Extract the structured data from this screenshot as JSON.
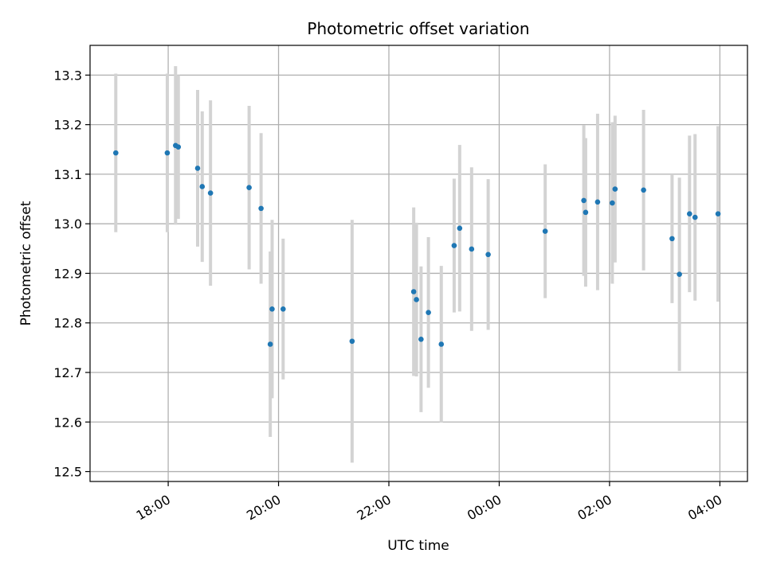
{
  "chart_data": {
    "type": "scatter",
    "title": "Photometric offset variation",
    "xlabel": "UTC time",
    "ylabel": "Photometric offset",
    "x_tick_labels": [
      "18:00",
      "20:00",
      "22:00",
      "00:00",
      "02:00",
      "04:00"
    ],
    "x_ticks": [
      "18:00",
      "20:00",
      "22:00",
      "00:00",
      "02:00",
      "04:00"
    ],
    "x_range": [
      "16:35",
      "04:30"
    ],
    "y_range": [
      12.48,
      13.36
    ],
    "y_ticks": [
      12.5,
      12.6,
      12.7,
      12.8,
      12.9,
      13.0,
      13.1,
      13.2,
      13.3
    ],
    "y_tick_labels": [
      "12.5",
      "12.6",
      "12.7",
      "12.8",
      "12.9",
      "13.0",
      "13.1",
      "13.2",
      "13.3"
    ],
    "grid": true,
    "x_tick_rotation": "30deg",
    "point_color": "#1f77b4",
    "errorbar_color": "#d3d3d3",
    "series": [
      {
        "points": [
          {
            "x": "17:03",
            "y": 13.143,
            "err": 0.16
          },
          {
            "x": "17:59",
            "y": 13.143,
            "err": 0.16
          },
          {
            "x": "18:08",
            "y": 13.158,
            "err": 0.16
          },
          {
            "x": "18:11",
            "y": 13.155,
            "err": 0.145
          },
          {
            "x": "18:32",
            "y": 13.112,
            "err": 0.158
          },
          {
            "x": "18:37",
            "y": 13.075,
            "err": 0.152
          },
          {
            "x": "18:46",
            "y": 13.062,
            "err": 0.187
          },
          {
            "x": "19:28",
            "y": 13.073,
            "err": 0.165
          },
          {
            "x": "19:41",
            "y": 13.031,
            "err": 0.152
          },
          {
            "x": "19:51",
            "y": 12.757,
            "err": 0.187
          },
          {
            "x": "19:53",
            "y": 12.828,
            "err": 0.18
          },
          {
            "x": "20:05",
            "y": 12.828,
            "err": 0.142
          },
          {
            "x": "21:20",
            "y": 12.763,
            "err": 0.245
          },
          {
            "x": "22:27",
            "y": 12.863,
            "err": 0.17
          },
          {
            "x": "22:30",
            "y": 12.847,
            "err": 0.155
          },
          {
            "x": "22:35",
            "y": 12.767,
            "err": 0.147
          },
          {
            "x": "22:43",
            "y": 12.821,
            "err": 0.152
          },
          {
            "x": "22:57",
            "y": 12.757,
            "err": 0.158
          },
          {
            "x": "23:11",
            "y": 12.956,
            "err": 0.135
          },
          {
            "x": "23:17",
            "y": 12.991,
            "err": 0.168
          },
          {
            "x": "23:30",
            "y": 12.949,
            "err": 0.165
          },
          {
            "x": "23:48",
            "y": 12.938,
            "err": 0.152
          },
          {
            "x": "00:50",
            "y": 12.985,
            "err": 0.135
          },
          {
            "x": "01:32",
            "y": 13.047,
            "err": 0.152
          },
          {
            "x": "01:34",
            "y": 13.023,
            "err": 0.15
          },
          {
            "x": "01:47",
            "y": 13.044,
            "err": 0.178
          },
          {
            "x": "02:03",
            "y": 13.042,
            "err": 0.163
          },
          {
            "x": "02:06",
            "y": 13.07,
            "err": 0.148
          },
          {
            "x": "02:37",
            "y": 13.068,
            "err": 0.162
          },
          {
            "x": "03:08",
            "y": 12.97,
            "err": 0.13
          },
          {
            "x": "03:16",
            "y": 12.898,
            "err": 0.195
          },
          {
            "x": "03:27",
            "y": 13.02,
            "err": 0.158
          },
          {
            "x": "03:33",
            "y": 13.013,
            "err": 0.168
          },
          {
            "x": "03:58",
            "y": 13.02,
            "err": 0.177
          }
        ]
      }
    ]
  }
}
